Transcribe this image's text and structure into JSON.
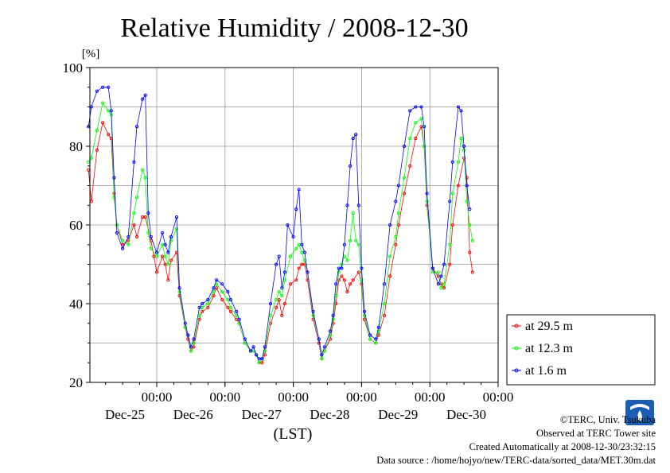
{
  "chart_data": {
    "type": "line",
    "title": "Relative Humidity / 2008-12-30",
    "yunit": "[%]",
    "xlabel": "(LST)",
    "ylim": [
      20,
      100
    ],
    "yticks": [
      20,
      40,
      60,
      80,
      100
    ],
    "xlim": [
      0,
      144
    ],
    "xticks": [
      {
        "top": "00:00",
        "bottom": "Dec-25"
      },
      {
        "top": "00:00",
        "bottom": "Dec-26"
      },
      {
        "top": "00:00",
        "bottom": "Dec-27"
      },
      {
        "top": "00:00",
        "bottom": "Dec-28"
      },
      {
        "top": "00:00",
        "bottom": "Dec-29"
      },
      {
        "top": "00:00",
        "bottom": "Dec-30"
      }
    ],
    "grid": true,
    "legend_position": "right",
    "series": [
      {
        "name": "at 29.5 m",
        "color": "#ff0000",
        "points": [
          [
            0,
            74
          ],
          [
            1,
            66
          ],
          [
            3,
            79
          ],
          [
            5,
            86
          ],
          [
            7,
            83
          ],
          [
            8,
            82
          ],
          [
            9,
            68
          ],
          [
            10,
            60
          ],
          [
            12,
            55
          ],
          [
            14,
            56
          ],
          [
            16,
            60
          ],
          [
            17,
            57
          ],
          [
            19,
            62
          ],
          [
            20,
            62
          ],
          [
            22,
            56
          ],
          [
            23,
            52
          ],
          [
            24,
            48
          ],
          [
            26,
            52
          ],
          [
            27,
            50
          ],
          [
            28,
            46
          ],
          [
            29,
            51
          ],
          [
            31,
            53
          ],
          [
            32,
            42
          ],
          [
            34,
            34
          ],
          [
            35,
            31
          ],
          [
            36,
            28
          ],
          [
            37,
            29
          ],
          [
            39,
            36
          ],
          [
            40,
            38
          ],
          [
            42,
            39
          ],
          [
            44,
            42
          ],
          [
            45,
            44
          ],
          [
            47,
            41
          ],
          [
            49,
            39
          ],
          [
            50,
            38
          ],
          [
            52,
            36
          ],
          [
            53,
            35
          ],
          [
            55,
            30
          ],
          [
            57,
            28
          ],
          [
            58,
            28
          ],
          [
            59,
            27
          ],
          [
            60,
            25
          ],
          [
            61,
            25
          ],
          [
            62,
            27
          ],
          [
            64,
            35
          ],
          [
            66,
            39
          ],
          [
            67,
            41
          ],
          [
            68,
            37
          ],
          [
            69,
            40
          ],
          [
            71,
            45
          ],
          [
            73,
            46
          ],
          [
            74,
            49
          ],
          [
            75,
            50
          ],
          [
            76,
            50
          ],
          [
            77,
            46
          ],
          [
            79,
            36
          ],
          [
            81,
            30
          ],
          [
            82,
            26
          ],
          [
            83,
            28
          ],
          [
            85,
            31
          ],
          [
            86,
            35
          ],
          [
            87,
            40
          ],
          [
            88,
            46
          ],
          [
            89,
            47
          ],
          [
            90,
            46
          ],
          [
            91,
            43
          ],
          [
            92,
            45
          ],
          [
            93,
            46
          ],
          [
            95,
            48
          ],
          [
            96,
            45
          ],
          [
            97,
            36
          ],
          [
            99,
            31
          ],
          [
            101,
            30
          ],
          [
            102,
            32
          ],
          [
            104,
            37
          ],
          [
            106,
            47
          ],
          [
            108,
            55
          ],
          [
            109,
            60
          ],
          [
            111,
            68
          ],
          [
            113,
            75
          ],
          [
            115,
            82
          ],
          [
            117,
            85
          ],
          [
            118,
            80
          ],
          [
            119,
            65
          ],
          [
            121,
            49
          ],
          [
            123,
            47
          ],
          [
            124,
            45
          ],
          [
            125,
            44
          ],
          [
            127,
            50
          ],
          [
            128,
            60
          ],
          [
            130,
            70
          ],
          [
            132,
            77
          ],
          [
            133,
            72
          ],
          [
            134,
            53
          ],
          [
            135,
            48
          ]
        ]
      },
      {
        "name": "at 12.3 m",
        "color": "#00ff00",
        "points": [
          [
            0,
            76
          ],
          [
            1,
            77
          ],
          [
            3,
            84
          ],
          [
            5,
            91
          ],
          [
            7,
            89
          ],
          [
            8,
            88
          ],
          [
            9,
            67
          ],
          [
            10,
            60
          ],
          [
            12,
            56
          ],
          [
            14,
            55
          ],
          [
            16,
            63
          ],
          [
            17,
            67
          ],
          [
            19,
            74
          ],
          [
            20,
            72
          ],
          [
            21,
            58
          ],
          [
            22,
            54
          ],
          [
            24,
            52
          ],
          [
            26,
            55
          ],
          [
            27,
            52
          ],
          [
            28,
            50
          ],
          [
            29,
            56
          ],
          [
            31,
            59
          ],
          [
            32,
            43
          ],
          [
            34,
            34
          ],
          [
            35,
            32
          ],
          [
            36,
            28
          ],
          [
            37,
            30
          ],
          [
            39,
            37
          ],
          [
            40,
            39
          ],
          [
            42,
            40
          ],
          [
            44,
            43
          ],
          [
            45,
            45
          ],
          [
            47,
            43
          ],
          [
            49,
            41
          ],
          [
            50,
            39
          ],
          [
            52,
            37
          ],
          [
            53,
            35
          ],
          [
            55,
            30
          ],
          [
            57,
            28
          ],
          [
            58,
            28
          ],
          [
            59,
            27
          ],
          [
            60,
            25
          ],
          [
            61,
            26
          ],
          [
            62,
            28
          ],
          [
            64,
            37
          ],
          [
            66,
            41
          ],
          [
            67,
            43
          ],
          [
            68,
            42
          ],
          [
            69,
            46
          ],
          [
            71,
            52
          ],
          [
            73,
            54
          ],
          [
            74,
            55
          ],
          [
            75,
            53
          ],
          [
            76,
            51
          ],
          [
            77,
            48
          ],
          [
            79,
            37
          ],
          [
            81,
            31
          ],
          [
            82,
            26
          ],
          [
            83,
            28
          ],
          [
            85,
            32
          ],
          [
            86,
            36
          ],
          [
            87,
            42
          ],
          [
            88,
            48
          ],
          [
            89,
            50
          ],
          [
            90,
            52
          ],
          [
            91,
            51
          ],
          [
            92,
            56
          ],
          [
            93,
            63
          ],
          [
            94,
            56
          ],
          [
            95,
            55
          ],
          [
            96,
            46
          ],
          [
            97,
            37
          ],
          [
            99,
            31
          ],
          [
            101,
            30
          ],
          [
            102,
            33
          ],
          [
            104,
            40
          ],
          [
            106,
            52
          ],
          [
            108,
            57
          ],
          [
            109,
            63
          ],
          [
            111,
            72
          ],
          [
            113,
            82
          ],
          [
            115,
            86
          ],
          [
            117,
            87
          ],
          [
            118,
            80
          ],
          [
            119,
            66
          ],
          [
            121,
            48
          ],
          [
            123,
            48
          ],
          [
            124,
            44
          ],
          [
            125,
            45
          ],
          [
            127,
            55
          ],
          [
            128,
            68
          ],
          [
            130,
            76
          ],
          [
            131,
            82
          ],
          [
            132,
            79
          ],
          [
            133,
            66
          ],
          [
            134,
            60
          ],
          [
            135,
            56
          ]
        ]
      },
      {
        "name": "at 1.6 m",
        "color": "#0000ff",
        "points": [
          [
            0,
            85
          ],
          [
            1,
            90
          ],
          [
            3,
            94
          ],
          [
            5,
            95
          ],
          [
            7,
            95
          ],
          [
            8,
            89
          ],
          [
            9,
            72
          ],
          [
            10,
            58
          ],
          [
            12,
            54
          ],
          [
            14,
            57
          ],
          [
            16,
            76
          ],
          [
            17,
            85
          ],
          [
            19,
            92
          ],
          [
            20,
            93
          ],
          [
            21,
            63
          ],
          [
            22,
            57
          ],
          [
            24,
            53
          ],
          [
            26,
            58
          ],
          [
            27,
            55
          ],
          [
            28,
            53
          ],
          [
            29,
            57
          ],
          [
            31,
            62
          ],
          [
            32,
            44
          ],
          [
            34,
            35
          ],
          [
            35,
            32
          ],
          [
            36,
            29
          ],
          [
            37,
            31
          ],
          [
            39,
            39
          ],
          [
            40,
            40
          ],
          [
            42,
            41
          ],
          [
            44,
            44
          ],
          [
            45,
            46
          ],
          [
            47,
            45
          ],
          [
            49,
            43
          ],
          [
            50,
            41
          ],
          [
            52,
            38
          ],
          [
            53,
            36
          ],
          [
            55,
            31
          ],
          [
            57,
            28
          ],
          [
            58,
            29
          ],
          [
            59,
            27
          ],
          [
            60,
            26
          ],
          [
            61,
            26
          ],
          [
            62,
            29
          ],
          [
            64,
            40
          ],
          [
            66,
            50
          ],
          [
            67,
            52
          ],
          [
            68,
            44
          ],
          [
            69,
            48
          ],
          [
            70,
            60
          ],
          [
            72,
            57
          ],
          [
            73,
            64
          ],
          [
            74,
            69
          ],
          [
            75,
            55
          ],
          [
            76,
            53
          ],
          [
            77,
            48
          ],
          [
            79,
            38
          ],
          [
            81,
            31
          ],
          [
            82,
            27
          ],
          [
            83,
            29
          ],
          [
            85,
            33
          ],
          [
            86,
            37
          ],
          [
            87,
            45
          ],
          [
            88,
            49
          ],
          [
            89,
            49
          ],
          [
            90,
            55
          ],
          [
            91,
            65
          ],
          [
            92,
            75
          ],
          [
            93,
            82
          ],
          [
            94,
            83
          ],
          [
            95,
            65
          ],
          [
            96,
            49
          ],
          [
            97,
            38
          ],
          [
            99,
            32
          ],
          [
            101,
            31
          ],
          [
            102,
            34
          ],
          [
            104,
            45
          ],
          [
            106,
            60
          ],
          [
            108,
            66
          ],
          [
            109,
            70
          ],
          [
            111,
            80
          ],
          [
            113,
            89
          ],
          [
            115,
            90
          ],
          [
            117,
            90
          ],
          [
            118,
            85
          ],
          [
            119,
            68
          ],
          [
            121,
            49
          ],
          [
            123,
            45
          ],
          [
            124,
            47
          ],
          [
            125,
            50
          ],
          [
            127,
            66
          ],
          [
            128,
            76
          ],
          [
            130,
            90
          ],
          [
            131,
            89
          ],
          [
            132,
            80
          ],
          [
            133,
            70
          ],
          [
            134,
            64
          ]
        ]
      }
    ]
  },
  "credits": {
    "line1": "©TERC, Univ. Tsukuba",
    "line2": "Observed at TERC Tower site",
    "line3": "Created Automatically at 2008-12-30/23:32:15",
    "line4": "Data source : /home/hojyo/new/TERC-data/sorted_data/MET.30m.dat"
  },
  "logo_text": "TERC"
}
